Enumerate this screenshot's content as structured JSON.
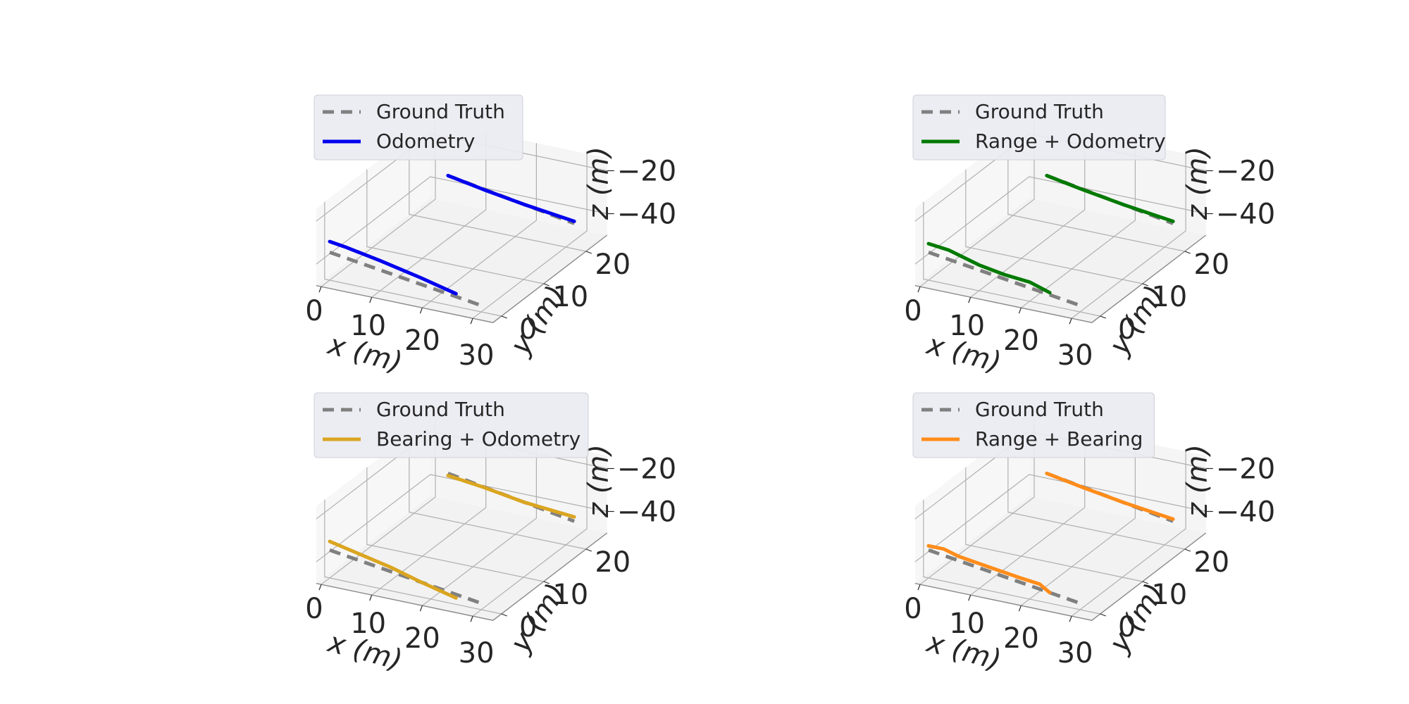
{
  "figure": {
    "colors": {
      "ground_truth": "#808080",
      "odometry": "#0000ee",
      "range_odometry": "#007a00",
      "bearing_odometry": "#daa520",
      "range_bearing": "#ff8c1a",
      "pane": "#f2f2f2",
      "grid": "#b0b0b0",
      "legend_bg": "#eaeaf2"
    }
  },
  "chart_data": [
    {
      "type": "line",
      "projection": "3d",
      "xlabel": "x (m)",
      "ylabel": "y (m)",
      "zlabel": "z (m)",
      "xticks": [
        "0",
        "10",
        "20",
        "30"
      ],
      "yticks": [
        "0",
        "10",
        "20"
      ],
      "zticks": [
        "−20",
        "−40"
      ],
      "legend_position": "top-left",
      "series": [
        {
          "name": "Ground Truth",
          "style": "dashed",
          "color": "#808080",
          "tracks": [
            {
              "x": [
                5,
                30
              ],
              "y": [
                22,
                22
              ],
              "z": [
                -32,
                -42
              ]
            },
            {
              "x": [
                0,
                30
              ],
              "y": [
                0,
                0
              ],
              "z": [
                -37,
                -47
              ]
            }
          ]
        },
        {
          "name": "Odometry",
          "style": "solid",
          "color": "#0000ee",
          "tracks": [
            {
              "x": [
                5,
                12,
                20,
                30
              ],
              "y": [
                22,
                22,
                22,
                22
              ],
              "z": [
                -32,
                -35,
                -38,
                -41
              ]
            },
            {
              "x": [
                0,
                3,
                10,
                18,
                25
              ],
              "y": [
                0,
                0,
                0,
                0,
                0
              ],
              "z": [
                -32,
                -33,
                -36,
                -40,
                -44
              ]
            }
          ]
        }
      ]
    },
    {
      "type": "line",
      "projection": "3d",
      "xlabel": "x (m)",
      "ylabel": "y (m)",
      "zlabel": "z (m)",
      "xticks": [
        "0",
        "10",
        "20",
        "30"
      ],
      "yticks": [
        "0",
        "10",
        "20"
      ],
      "zticks": [
        "−20",
        "−40"
      ],
      "legend_position": "top-left",
      "series": [
        {
          "name": "Ground Truth",
          "style": "dashed",
          "color": "#808080",
          "tracks": [
            {
              "x": [
                5,
                30
              ],
              "y": [
                22,
                22
              ],
              "z": [
                -32,
                -42
              ]
            },
            {
              "x": [
                0,
                30
              ],
              "y": [
                0,
                0
              ],
              "z": [
                -37,
                -47
              ]
            }
          ]
        },
        {
          "name": "Range + Odometry",
          "style": "solid",
          "color": "#007a00",
          "tracks": [
            {
              "x": [
                5,
                12,
                20,
                30
              ],
              "y": [
                22,
                22,
                22,
                22
              ],
              "z": [
                -32,
                -35,
                -38,
                -41
              ]
            },
            {
              "x": [
                0,
                4,
                10,
                15,
                20,
                24
              ],
              "y": [
                0,
                0,
                0,
                0,
                0,
                0
              ],
              "z": [
                -33,
                -34,
                -38,
                -40,
                -41,
                -44
              ]
            }
          ]
        }
      ]
    },
    {
      "type": "line",
      "projection": "3d",
      "xlabel": "x (m)",
      "ylabel": "y (m)",
      "zlabel": "z (m)",
      "xticks": [
        "0",
        "10",
        "20",
        "30"
      ],
      "yticks": [
        "0",
        "10",
        "20"
      ],
      "zticks": [
        "−20",
        "−40"
      ],
      "legend_position": "top-left",
      "series": [
        {
          "name": "Ground Truth",
          "style": "dashed",
          "color": "#808080",
          "tracks": [
            {
              "x": [
                5,
                30
              ],
              "y": [
                22,
                22
              ],
              "z": [
                -32,
                -42
              ]
            },
            {
              "x": [
                0,
                30
              ],
              "y": [
                0,
                0
              ],
              "z": [
                -37,
                -47
              ]
            }
          ]
        },
        {
          "name": "Bearing + Odometry",
          "style": "solid",
          "color": "#daa520",
          "tracks": [
            {
              "x": [
                5,
                12,
                20,
                30
              ],
              "y": [
                22,
                22,
                22,
                22
              ],
              "z": [
                -33,
                -35,
                -38,
                -40
              ]
            },
            {
              "x": [
                0,
                6,
                12,
                18,
                25
              ],
              "y": [
                0,
                0,
                0,
                0,
                0
              ],
              "z": [
                -33,
                -36,
                -39,
                -43,
                -47
              ]
            }
          ]
        }
      ]
    },
    {
      "type": "line",
      "projection": "3d",
      "xlabel": "x (m)",
      "ylabel": "y (m)",
      "zlabel": "z (m)",
      "xticks": [
        "0",
        "10",
        "20",
        "30"
      ],
      "yticks": [
        "0",
        "10",
        "20"
      ],
      "zticks": [
        "−20",
        "−40"
      ],
      "legend_position": "top-left",
      "series": [
        {
          "name": "Ground Truth",
          "style": "dashed",
          "color": "#808080",
          "tracks": [
            {
              "x": [
                5,
                30
              ],
              "y": [
                22,
                22
              ],
              "z": [
                -32,
                -42
              ]
            },
            {
              "x": [
                0,
                30
              ],
              "y": [
                0,
                0
              ],
              "z": [
                -37,
                -47
              ]
            }
          ]
        },
        {
          "name": "Range + Bearing",
          "style": "solid",
          "color": "#ff8c1a",
          "tracks": [
            {
              "x": [
                5,
                12,
                20,
                30
              ],
              "y": [
                22,
                22,
                22,
                22
              ],
              "z": [
                -32,
                -35,
                -38,
                -41
              ]
            },
            {
              "x": [
                0,
                3,
                6,
                12,
                18,
                22,
                24
              ],
              "y": [
                0,
                0,
                0,
                0,
                0,
                0,
                0
              ],
              "z": [
                -35,
                -35,
                -37,
                -39,
                -41,
                -42,
                -45
              ]
            }
          ]
        }
      ]
    }
  ]
}
